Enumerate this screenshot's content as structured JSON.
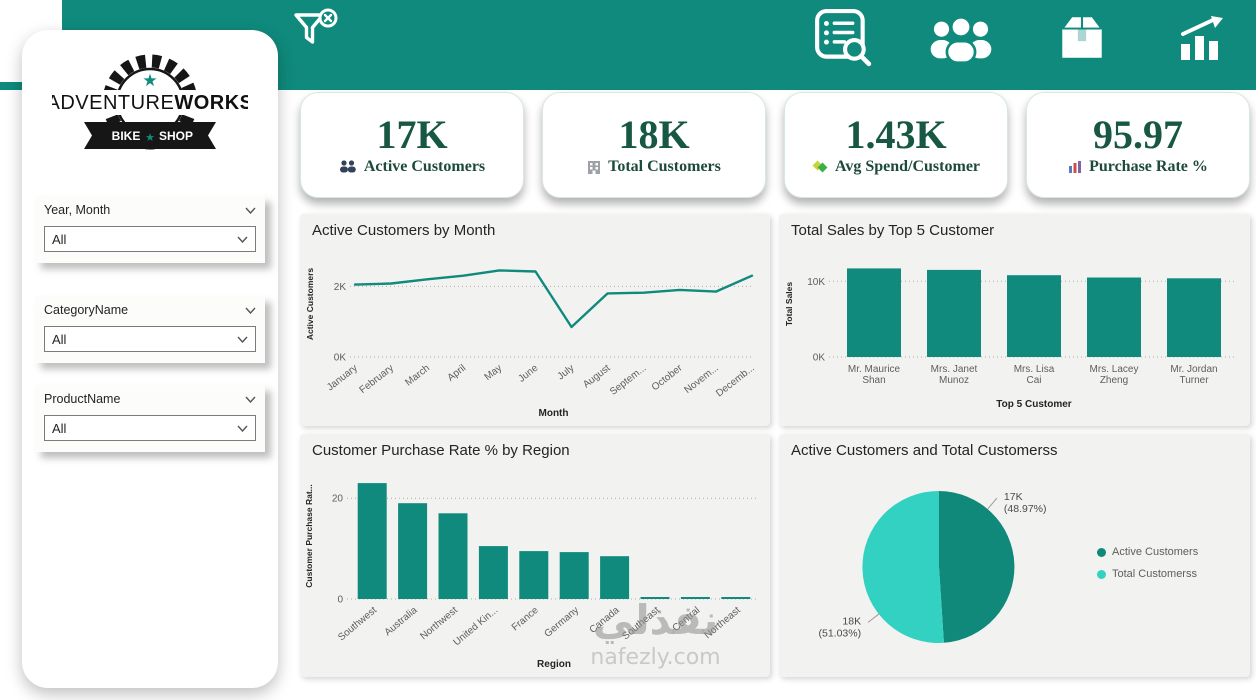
{
  "brand": {
    "name_a": "ADVENTURE",
    "name_b": "WORKS",
    "banner_a": "BIKE",
    "banner_b": "SHOP"
  },
  "filters": [
    {
      "label": "Year, Month",
      "value": "All"
    },
    {
      "label": "CategoryName",
      "value": "All"
    },
    {
      "label": "ProductName",
      "value": "All"
    }
  ],
  "kpis": [
    {
      "value": "17K",
      "label": "Active Customers"
    },
    {
      "value": "18K",
      "label": "Total Customers"
    },
    {
      "value": "1.43K",
      "label": "Avg Spend/Customer"
    },
    {
      "value": "95.97",
      "label": "Purchase Rate %"
    }
  ],
  "colors": {
    "teal": "#0F8A7C",
    "pie_dark": "#10897B",
    "pie_light": "#33D1C1",
    "kpi_green": "#175743"
  },
  "watermark": {
    "line1": "نفذلي",
    "line2": "nafezly.com"
  },
  "chart_data": [
    {
      "type": "line",
      "title": "Active Customers by Month",
      "xlabel": "Month",
      "ylabel": "Active Customers",
      "categories": [
        "January",
        "February",
        "March",
        "April",
        "May",
        "June",
        "July",
        "August",
        "Septem...",
        "October",
        "Novem...",
        "Decemb..."
      ],
      "values": [
        2.05,
        2.08,
        2.2,
        2.3,
        2.45,
        2.42,
        0.85,
        1.8,
        1.82,
        1.9,
        1.85,
        2.3
      ],
      "yticks": [
        {
          "v": 0,
          "label": "0K"
        },
        {
          "v": 2,
          "label": "2K"
        }
      ],
      "ylim": [
        0,
        3
      ],
      "grid": "dotted-horizontal",
      "unit": "K customers"
    },
    {
      "type": "bar",
      "title": "Total Sales by Top 5 Customer",
      "xlabel": "Top 5 Customer",
      "ylabel": "Total Sales",
      "categories": [
        [
          "Mr. Maurice",
          "Shan"
        ],
        [
          "Mrs. Janet",
          "Munoz"
        ],
        [
          "Mrs. Lisa",
          "Cai"
        ],
        [
          "Mrs. Lacey",
          "Zheng"
        ],
        [
          "Mr. Jordan",
          "Turner"
        ]
      ],
      "values": [
        11.7,
        11.5,
        10.8,
        10.5,
        10.4
      ],
      "yticks": [
        {
          "v": 0,
          "label": "0K"
        },
        {
          "v": 10,
          "label": "10K"
        }
      ],
      "ylim": [
        0,
        14
      ],
      "grid": "dotted-horizontal",
      "unit": "K sales"
    },
    {
      "type": "bar",
      "title": "Customer Purchase Rate % by Region",
      "xlabel": "Region",
      "ylabel": "Customer Purchase Rat...",
      "categories": [
        "Southwest",
        "Australia",
        "Northwest",
        "United Kin...",
        "France",
        "Germany",
        "Canada",
        "Southeast",
        "Central",
        "Northeast"
      ],
      "values": [
        23,
        19,
        17,
        10.5,
        9.5,
        9.3,
        8.5,
        0.4,
        0.4,
        0.4
      ],
      "yticks": [
        {
          "v": 0,
          "label": "0"
        },
        {
          "v": 20,
          "label": "20"
        }
      ],
      "ylim": [
        0,
        25
      ],
      "grid": "dotted-horizontal",
      "unit": "%"
    },
    {
      "type": "pie",
      "title": "Active Customers and Total Customerss",
      "legend_position": "right",
      "slices": [
        {
          "label": "Active Customers",
          "value": "17K",
          "pct": 48.97,
          "pct_label": "(48.97%)",
          "color": "#10897B"
        },
        {
          "label": "Total Customerss",
          "value": "18K",
          "pct": 51.03,
          "pct_label": "(51.03%)",
          "color": "#33D1C1"
        }
      ]
    }
  ]
}
